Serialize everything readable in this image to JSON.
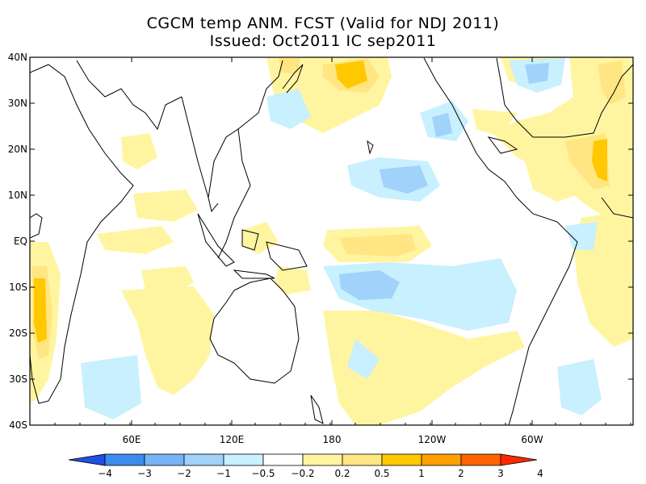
{
  "title": {
    "line1": "CGCM temp ANM. FCST  (Valid for NDJ 2011)",
    "line2": "Issued:  Oct2011 IC sep2011"
  },
  "axes": {
    "lat_labels": [
      "40N",
      "30N",
      "20N",
      "10N",
      "EQ",
      "10S",
      "20S",
      "30S",
      "40S"
    ],
    "lon_labels": [
      "60E",
      "120E",
      "180",
      "120W",
      "60W"
    ]
  },
  "colorbar": {
    "labels": [
      "−4",
      "−3",
      "−2",
      "−1",
      "−0.5",
      "−0.2",
      "0.2",
      "0.5",
      "1",
      "2",
      "3",
      "4"
    ],
    "colors": [
      "#1e50e6",
      "#3c8cf0",
      "#78b4f5",
      "#a0d2fa",
      "#c8f0ff",
      "#ffffff",
      "#fff5a0",
      "#ffe682",
      "#ffc800",
      "#ffa000",
      "#ff6400",
      "#ff2800"
    ]
  },
  "palette": {
    "land_outline": "#000000",
    "frame": "#000000"
  }
}
